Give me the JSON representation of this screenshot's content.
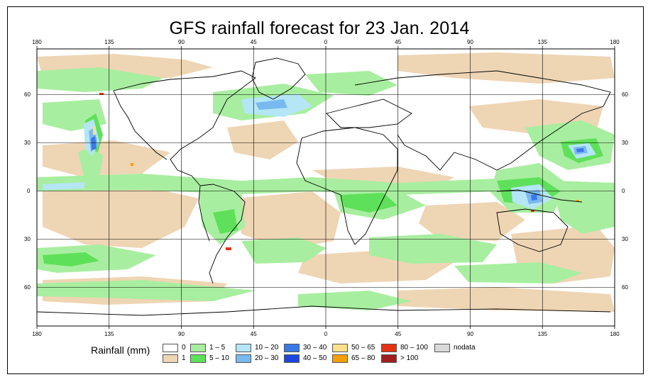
{
  "title": "GFS rainfall forecast for 23 Jan. 2014",
  "lon_ticks": [
    "180",
    "135",
    "90",
    "45",
    "0",
    "45",
    "90",
    "135",
    "180"
  ],
  "lat_ticks": [
    "60",
    "30",
    "0",
    "30",
    "60"
  ],
  "legend": {
    "title": "Rainfall (mm)",
    "items": [
      {
        "label": "0",
        "color": "#ffffff"
      },
      {
        "label": "1",
        "color": "#eed5b4"
      },
      {
        "label": "1 – 5",
        "color": "#a8eea0"
      },
      {
        "label": "5 – 10",
        "color": "#5fe05a"
      },
      {
        "label": "10 – 20",
        "color": "#b4e6f5"
      },
      {
        "label": "20 – 30",
        "color": "#78b9f0"
      },
      {
        "label": "30 – 40",
        "color": "#3c78e6"
      },
      {
        "label": "40 – 50",
        "color": "#1e46dc"
      },
      {
        "label": "50 – 65",
        "color": "#fce08c"
      },
      {
        "label": "65 – 80",
        "color": "#f5a000"
      },
      {
        "label": "80 – 100",
        "color": "#e63212"
      },
      {
        "label": "> 100",
        "color": "#a01e1e"
      },
      {
        "label": "nodata",
        "color": "#d9d9d9"
      }
    ]
  }
}
